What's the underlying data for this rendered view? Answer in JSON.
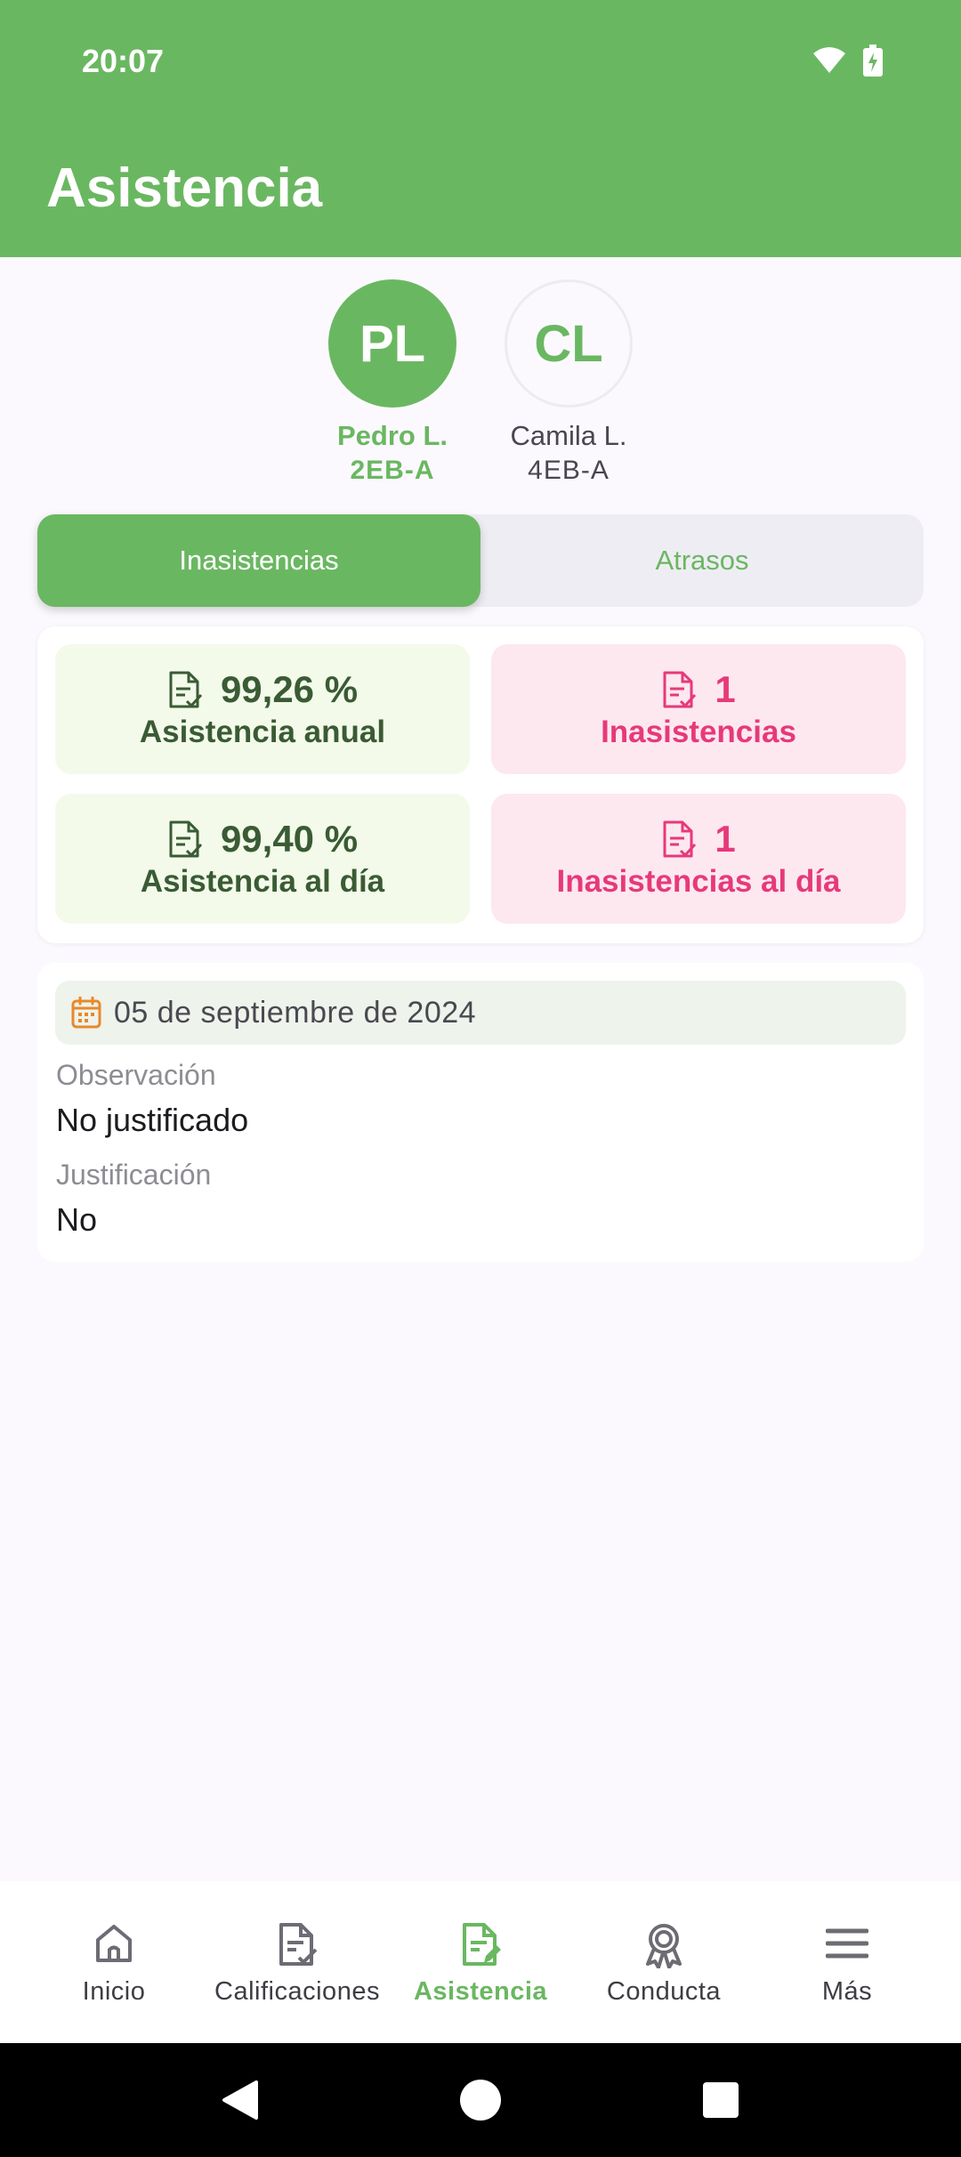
{
  "status_bar": {
    "time": "20:07",
    "icons": [
      "wifi-icon",
      "battery-charging-icon"
    ]
  },
  "header": {
    "title": "Asistencia"
  },
  "students": [
    {
      "initials": "PL",
      "name": "Pedro L.",
      "grade": "2EB-A",
      "selected": true
    },
    {
      "initials": "CL",
      "name": "Camila L.",
      "grade": "4EB-A",
      "selected": false
    }
  ],
  "tabs": [
    {
      "label": "Inasistencias",
      "active": true
    },
    {
      "label": "Atrasos",
      "active": false
    }
  ],
  "stats": [
    {
      "value": "99,26 %",
      "label": "Asistencia anual",
      "tone": "green"
    },
    {
      "value": "1",
      "label": "Inasistencias",
      "tone": "pink"
    },
    {
      "value": "99,40 %",
      "label": "Asistencia al día",
      "tone": "green"
    },
    {
      "value": "1",
      "label": "Inasistencias al día",
      "tone": "pink"
    }
  ],
  "record": {
    "date": "05 de septiembre de 2024",
    "observation_label": "Observación",
    "observation_value": "No justificado",
    "justification_label": "Justificación",
    "justification_value": "No"
  },
  "bottom_nav": [
    {
      "label": "Inicio",
      "icon": "home-icon"
    },
    {
      "label": "Calificaciones",
      "icon": "grades-document-icon"
    },
    {
      "label": "Asistencia",
      "icon": "attendance-document-icon",
      "active": true
    },
    {
      "label": "Conducta",
      "icon": "award-ribbon-icon"
    },
    {
      "label": "Más",
      "icon": "menu-icon"
    }
  ],
  "colors": {
    "primary": "#6ab761",
    "pink": "#e7397a",
    "dark_green": "#3a5b34",
    "calendar_orange": "#e8892b"
  }
}
